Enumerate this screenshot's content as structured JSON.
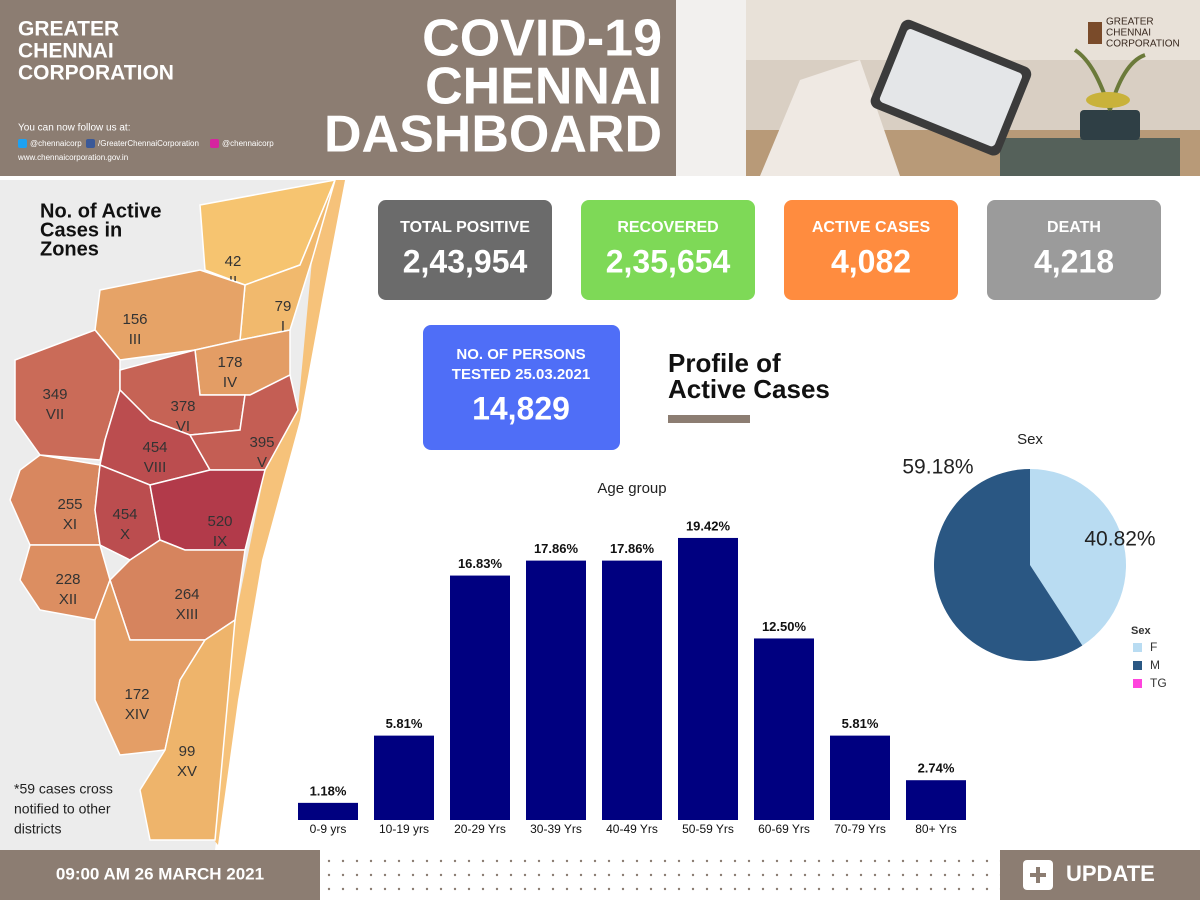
{
  "header": {
    "org_lines": [
      "GREATER",
      "CHENNAI",
      "CORPORATION"
    ],
    "follow_text": "You can now follow us at:",
    "twitter": "@chennaicorp",
    "facebook": "/GreaterChennaiCorporation",
    "instagram": "@chennaicorp",
    "website": "www.chennaicorporation.gov.in",
    "title_lines": [
      "COVID-19",
      "CHENNAI",
      "DASHBOARD"
    ],
    "logo_lines": [
      "GREATER",
      "CHENNAI",
      "CORPORATION"
    ]
  },
  "stats": [
    {
      "label": "TOTAL POSITIVE",
      "value": "2,43,954",
      "color": "#6b6b6b"
    },
    {
      "label": "RECOVERED",
      "value": "2,35,654",
      "color": "#7ed957"
    },
    {
      "label": "ACTIVE CASES",
      "value": "4,082",
      "color": "#ff8c3f"
    },
    {
      "label": "DEATH",
      "value": "4,218",
      "color": "#9b9b9b"
    }
  ],
  "tested": {
    "label_lines": [
      "NO. OF PERSONS",
      "TESTED 25.03.2021"
    ],
    "value": "14,829"
  },
  "profile_title_lines": [
    "Profile of",
    "Active Cases"
  ],
  "map": {
    "title_lines": [
      "No. of Active",
      "Cases in",
      "Zones"
    ],
    "zones": [
      {
        "count": 42,
        "name": "II"
      },
      {
        "count": 79,
        "name": "I"
      },
      {
        "count": 156,
        "name": "III"
      },
      {
        "count": 178,
        "name": "IV"
      },
      {
        "count": 349,
        "name": "VII"
      },
      {
        "count": 378,
        "name": "VI"
      },
      {
        "count": 454,
        "name": "VIII"
      },
      {
        "count": 395,
        "name": "V"
      },
      {
        "count": 255,
        "name": "XI"
      },
      {
        "count": 454,
        "name": "X"
      },
      {
        "count": 520,
        "name": "IX"
      },
      {
        "count": 228,
        "name": "XII"
      },
      {
        "count": 264,
        "name": "XIII"
      },
      {
        "count": 172,
        "name": "XIV"
      },
      {
        "count": 99,
        "name": "XV"
      }
    ],
    "note_lines": [
      "*59 cases cross",
      "notified to other",
      "districts"
    ]
  },
  "chart_data": [
    {
      "type": "bar",
      "title": "Age group",
      "categories": [
        "0-9 yrs",
        "10-19 yrs",
        "20-29 Yrs",
        "30-39 Yrs",
        "40-49 Yrs",
        "50-59 Yrs",
        "60-69 Yrs",
        "70-79 Yrs",
        "80+ Yrs"
      ],
      "values": [
        1.18,
        5.81,
        16.83,
        17.86,
        17.86,
        19.42,
        12.5,
        5.81,
        2.74
      ],
      "value_labels": [
        "1.18%",
        "5.81%",
        "16.83%",
        "17.86%",
        "17.86%",
        "19.42%",
        "12.50%",
        "5.81%",
        "2.74%"
      ],
      "color": "#000080",
      "ylim": [
        0,
        21
      ]
    },
    {
      "type": "pie",
      "title": "Sex",
      "legend_title": "Sex",
      "categories": [
        "F",
        "M",
        "TG"
      ],
      "values": [
        40.82,
        59.18,
        0
      ],
      "value_labels": [
        "40.82%",
        "59.18%",
        null
      ],
      "colors": [
        "#b9dcf2",
        "#2a5783",
        "#ff44dd"
      ]
    }
  ],
  "footer": {
    "timestamp": "09:00 AM 26 MARCH 2021",
    "update_label": "UPDATE"
  }
}
